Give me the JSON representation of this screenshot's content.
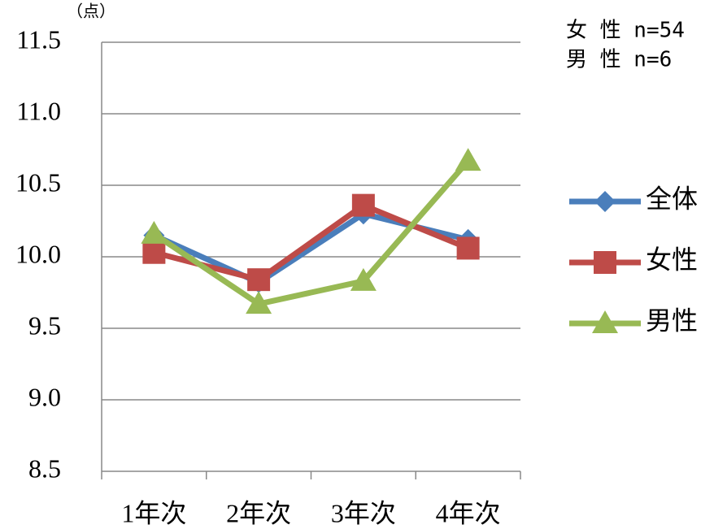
{
  "chart_data": {
    "type": "line",
    "unit_label": "（点）",
    "annotations": [
      "女 性 n=54",
      "男 性 n=6"
    ],
    "categories": [
      "1年次",
      "2年次",
      "3年次",
      "4年次"
    ],
    "series": [
      {
        "name": "全体",
        "color": "#4a7ebb",
        "marker": "diamond",
        "values": [
          10.15,
          9.82,
          10.3,
          10.12
        ]
      },
      {
        "name": "女性",
        "color": "#be4b48",
        "marker": "square",
        "values": [
          10.03,
          9.84,
          10.36,
          10.06
        ]
      },
      {
        "name": "男性",
        "color": "#98b954",
        "marker": "triangle",
        "values": [
          10.16,
          9.67,
          9.83,
          10.67
        ]
      }
    ],
    "ylim": [
      8.5,
      11.5
    ],
    "yticks": [
      8.5,
      {
        "value": 9,
        "label": "9.0"
      },
      9.5,
      {
        "value": 10,
        "label": "10.0"
      },
      10.5,
      {
        "value": 11,
        "label": "11.0"
      },
      11.5
    ],
    "grid": true,
    "legend": "right"
  }
}
